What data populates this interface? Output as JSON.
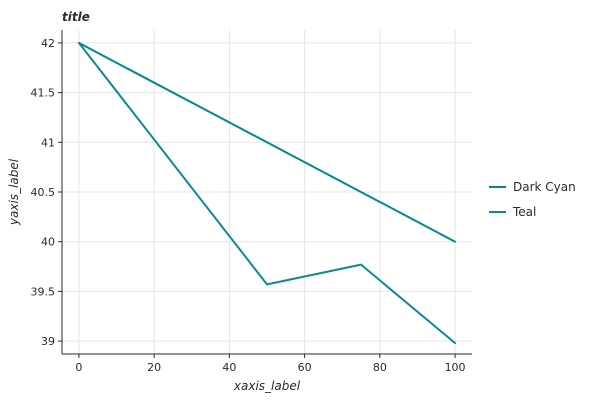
{
  "chart_data": {
    "type": "line",
    "title": "title",
    "xlabel": "xaxis_label",
    "ylabel": "yaxis_label",
    "xlim": [
      -4.5,
      104.5
    ],
    "ylim": [
      38.87,
      42.13
    ],
    "x_ticks": [
      0,
      20,
      40,
      60,
      80,
      100
    ],
    "y_ticks": [
      39,
      39.5,
      40,
      40.5,
      41,
      41.5,
      42
    ],
    "y_tick_labels": [
      "39",
      "39.5",
      "40",
      "40.5",
      "41",
      "41.5",
      "42"
    ],
    "grid": true,
    "legend_position": "right",
    "series": [
      {
        "name": "Dark Cyan",
        "color": "#008b8b",
        "x": [
          0,
          100
        ],
        "y": [
          42.0,
          40.0
        ]
      },
      {
        "name": "Teal",
        "color": "#0e8a94",
        "x": [
          0,
          50,
          75,
          100
        ],
        "y": [
          42.0,
          39.57,
          39.77,
          38.98
        ]
      }
    ]
  }
}
